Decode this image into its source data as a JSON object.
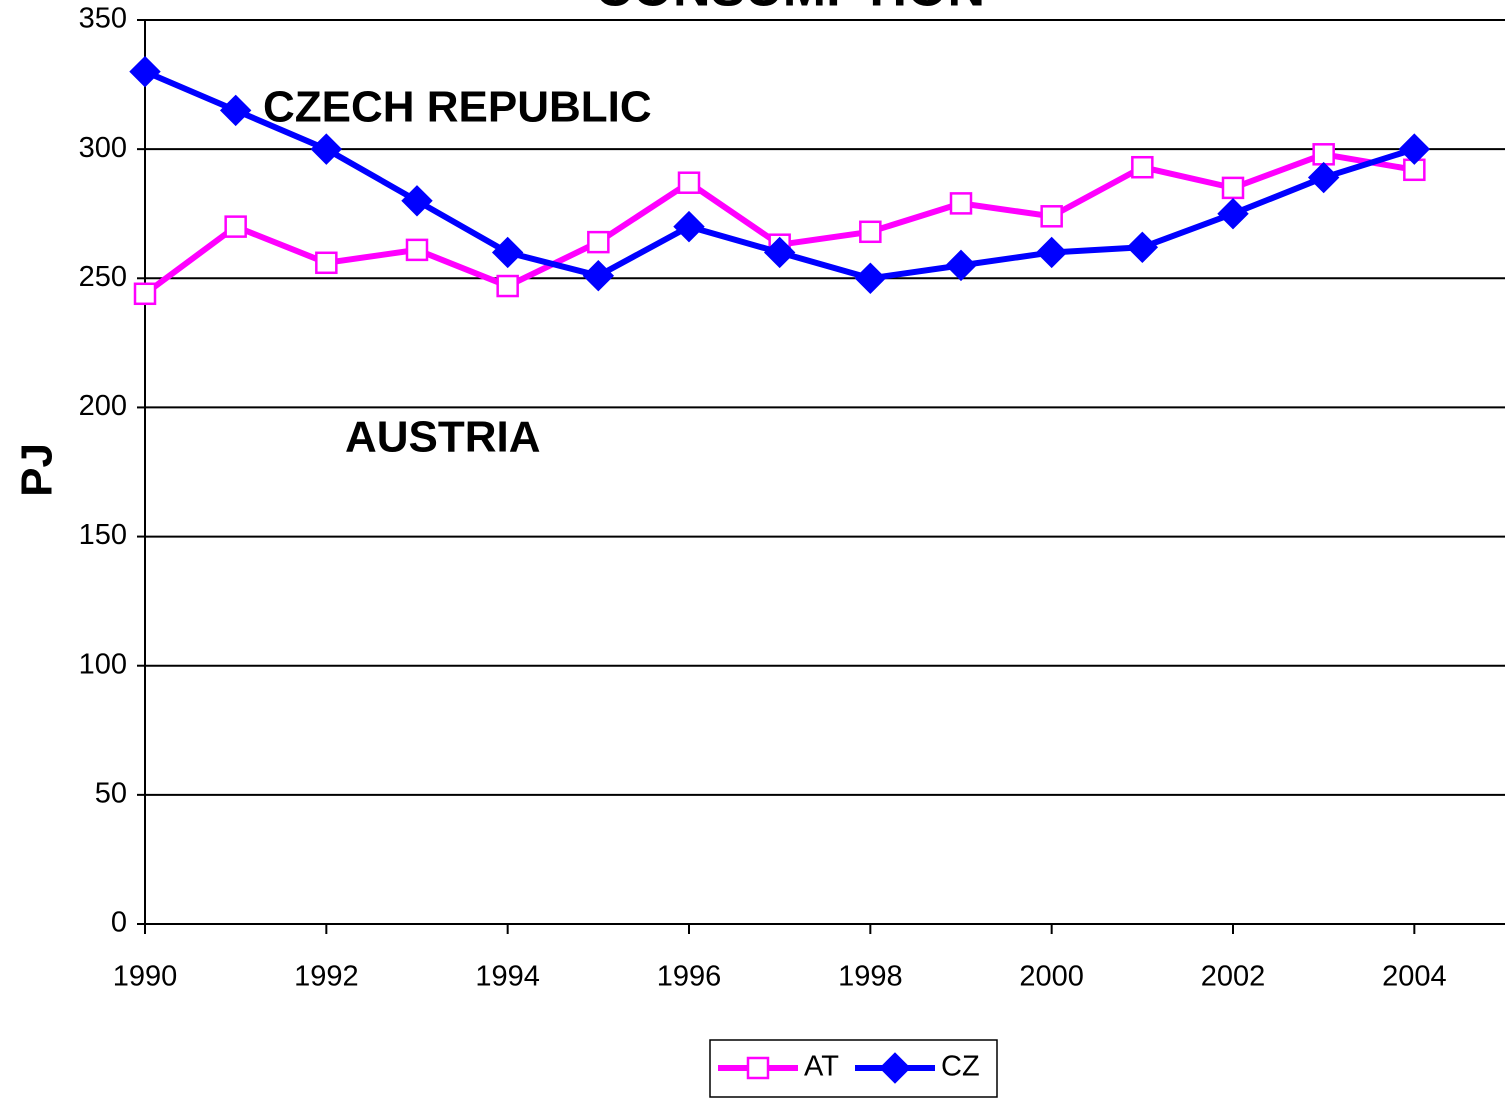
{
  "chart_data": {
    "type": "line",
    "title": "CONSUMPTION",
    "y_label": "PJ",
    "annotations": [
      "CZECH REPUBLIC",
      "AUSTRIA"
    ],
    "x": [
      1990,
      1991,
      1992,
      1993,
      1994,
      1995,
      1996,
      1997,
      1998,
      1999,
      2000,
      2001,
      2002,
      2003,
      2004
    ],
    "series": [
      {
        "name": "AT",
        "color": "#ff00ff",
        "marker": "open-square",
        "values": [
          244,
          270,
          256,
          261,
          247,
          264,
          287,
          263,
          268,
          279,
          274,
          293,
          285,
          298,
          292
        ]
      },
      {
        "name": "CZ",
        "color": "#0000ff",
        "marker": "filled-diamond",
        "values": [
          330,
          315,
          300,
          280,
          260,
          251,
          270,
          260,
          250,
          255,
          260,
          262,
          275,
          289,
          300
        ]
      }
    ],
    "xlim": [
      1990,
      2005
    ],
    "xticks": [
      1990,
      1992,
      1994,
      1996,
      1998,
      2000,
      2002,
      2004
    ],
    "ylim": [
      0,
      350
    ],
    "yticks": [
      0,
      50,
      100,
      150,
      200,
      250,
      300,
      350
    ],
    "grid": true,
    "legend": "bottom"
  }
}
